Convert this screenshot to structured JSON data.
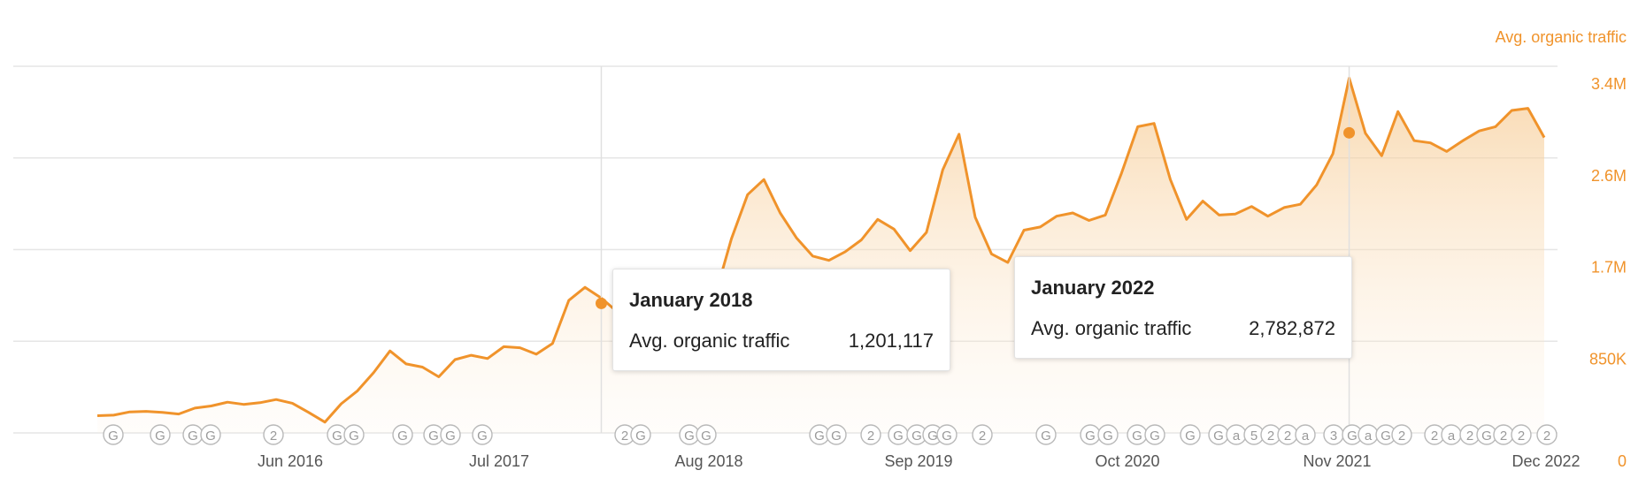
{
  "chart_data": {
    "type": "area",
    "series_label": "Avg. organic traffic",
    "x_tick_labels": [
      "Jun 2016",
      "Jul 2017",
      "Aug 2018",
      "Sep 2019",
      "Oct 2020",
      "Nov 2021",
      "Dec 2022"
    ],
    "y_tick_labels": [
      "0",
      "850K",
      "1.7M",
      "2.6M",
      "3.4M"
    ],
    "y_ticks": [
      0,
      850000,
      1700000,
      2550000,
      3400000
    ],
    "ylim": [
      0,
      3400000
    ],
    "grid": true,
    "colors": {
      "line": "#f0932b",
      "fill_top": "#f6c88d",
      "axis_text": "#f0932b",
      "marker_text": "#9a9a9a"
    },
    "values": [
      160000,
      165000,
      195000,
      200000,
      190000,
      175000,
      230000,
      250000,
      285000,
      265000,
      280000,
      310000,
      275000,
      190000,
      100000,
      270000,
      390000,
      560000,
      760000,
      640000,
      610000,
      520000,
      680000,
      720000,
      690000,
      800000,
      790000,
      730000,
      830000,
      1230000,
      1350000,
      1250000,
      1120000,
      1000000,
      980000,
      1110000,
      1150000,
      1160000,
      1270000,
      1800000,
      2210000,
      2350000,
      2040000,
      1810000,
      1640000,
      1600000,
      1680000,
      1790000,
      1980000,
      1890000,
      1690000,
      1860000,
      2440000,
      2770000,
      2000000,
      1660000,
      1580000,
      1880000,
      1910000,
      2010000,
      2040000,
      1970000,
      2020000,
      2410000,
      2840000,
      2870000,
      2350000,
      1980000,
      2150000,
      2020000,
      2030000,
      2100000,
      2010000,
      2090000,
      2120000,
      2300000,
      2590000,
      3290000,
      2780000,
      2570000,
      2980000,
      2710000,
      2690000,
      2610000,
      2710000,
      2800000,
      2840000,
      2990000,
      3010000,
      2740000
    ],
    "tooltips": [
      {
        "title": "January 2018",
        "label": "Avg. organic traffic",
        "value": "1,201,117",
        "value_num": 1201117
      },
      {
        "title": "January 2022",
        "label": "Avg. organic traffic",
        "value": "2,782,872",
        "value_num": 2782872
      }
    ],
    "markers": [
      "G",
      "G",
      "G",
      "G",
      "2",
      "G",
      "G",
      "G",
      "G",
      "G",
      "G",
      "2",
      "G",
      "G",
      "G",
      "G",
      "G",
      "2",
      "G",
      "G",
      "G",
      "G",
      "2",
      "G",
      "G",
      "G",
      "G",
      "G",
      "G",
      "G",
      "a",
      "5",
      "2",
      "2",
      "a",
      "3",
      "G",
      "a",
      "G",
      "2",
      "2",
      "a",
      "2",
      "G",
      "2",
      "2",
      "2"
    ]
  }
}
